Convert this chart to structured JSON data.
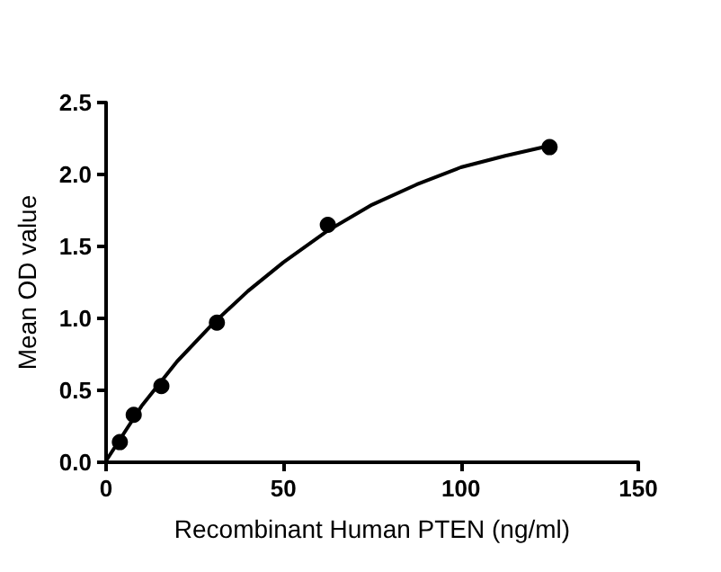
{
  "chart_data": {
    "type": "scatter",
    "xlabel": "Recombinant Human PTEN (ng/ml)",
    "ylabel": "Mean OD value",
    "xlim": [
      0,
      150
    ],
    "xticks": [
      0,
      50,
      100,
      150
    ],
    "ylim": [
      0,
      2.5
    ],
    "yticks": [
      {
        "value": 0,
        "label": "0.0"
      },
      0.5,
      {
        "value": 1,
        "label": "1.0"
      },
      1.5,
      {
        "value": 2,
        "label": "2.0"
      },
      2.5
    ],
    "grid": false,
    "series": [
      {
        "marker": "circle",
        "color": "#000000",
        "x": [
          3.9,
          7.8,
          15.6,
          31.25,
          62.5,
          125
        ],
        "values": [
          0.14,
          0.33,
          0.53,
          0.97,
          1.65,
          2.19
        ]
      },
      {
        "type": "line",
        "marker": "none",
        "color": "#000000",
        "x": [
          0,
          5,
          10,
          20,
          30,
          40,
          50,
          62.5,
          75,
          87.5,
          100,
          112.5,
          125
        ],
        "values": [
          0.01,
          0.2,
          0.39,
          0.7,
          0.96,
          1.19,
          1.39,
          1.61,
          1.79,
          1.93,
          2.05,
          2.13,
          2.2
        ]
      }
    ]
  }
}
